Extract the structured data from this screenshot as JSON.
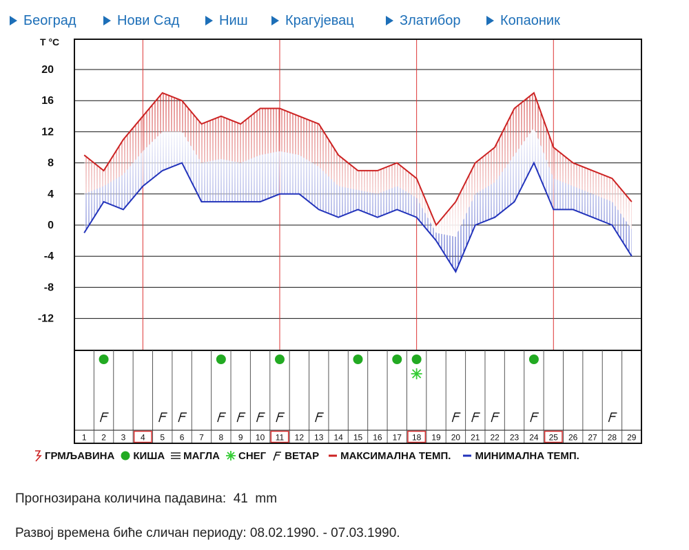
{
  "nav": {
    "items": [
      {
        "label": "Београд"
      },
      {
        "label": "Нови Сад"
      },
      {
        "label": "Ниш"
      },
      {
        "label": "Крагујевац"
      },
      {
        "label": "Златибор"
      },
      {
        "label": "Копаоник"
      }
    ]
  },
  "colors": {
    "max_temp": "#cc2222",
    "min_temp": "#2233bb",
    "rain": "#22aa22",
    "snow": "#33cc33",
    "marked_day": "#dd3333",
    "nav_link": "#1d6fb8"
  },
  "chart_data": {
    "type": "line",
    "ylabel": "T °C",
    "ylim": [
      -16,
      24
    ],
    "yticks": [
      20,
      16,
      12,
      8,
      4,
      0,
      -4,
      -8,
      -12
    ],
    "x": [
      1,
      2,
      3,
      4,
      5,
      6,
      7,
      8,
      9,
      10,
      11,
      12,
      13,
      14,
      15,
      16,
      17,
      18,
      19,
      20,
      21,
      22,
      23,
      24,
      25,
      26,
      27,
      28,
      29
    ],
    "series": [
      {
        "name": "МАКСИМАЛНА ТЕМП.",
        "values": [
          9,
          7,
          11,
          14,
          17,
          16,
          13,
          14,
          13,
          15,
          15,
          14,
          13,
          9,
          7,
          7,
          8,
          6,
          0,
          3,
          8,
          10,
          15,
          17,
          10,
          8,
          7,
          6,
          3
        ]
      },
      {
        "name": "МИНИМАЛНА ТЕМП.",
        "values": [
          -1,
          3,
          2,
          5,
          7,
          8,
          3,
          3,
          3,
          3,
          4,
          4,
          2,
          1,
          2,
          1,
          2,
          1,
          -2,
          -6,
          0,
          1,
          3,
          8,
          2,
          2,
          1,
          0,
          -4
        ]
      }
    ],
    "marked_days": [
      4,
      11,
      18,
      25
    ],
    "events": {
      "rain_days": [
        2,
        8,
        11,
        15,
        17,
        18,
        24
      ],
      "snow_days": [
        18
      ],
      "wind_days": [
        2,
        5,
        6,
        8,
        9,
        10,
        11,
        13,
        20,
        21,
        22,
        24,
        28
      ]
    },
    "legend": [
      "ГРМЉАВИНА",
      "КИША",
      "МАГЛА",
      "СНЕГ",
      "ВЕТАР",
      "МАКСИМАЛНА ТЕМП.",
      "МИНИМАЛНА ТЕМП."
    ]
  },
  "info": {
    "precip_label": "Прогнозирана количина падавина:",
    "precip_value": "41",
    "precip_unit": "mm",
    "period_text": "Развој времена биће сличан периоду: 08.02.1990. - 07.03.1990."
  }
}
